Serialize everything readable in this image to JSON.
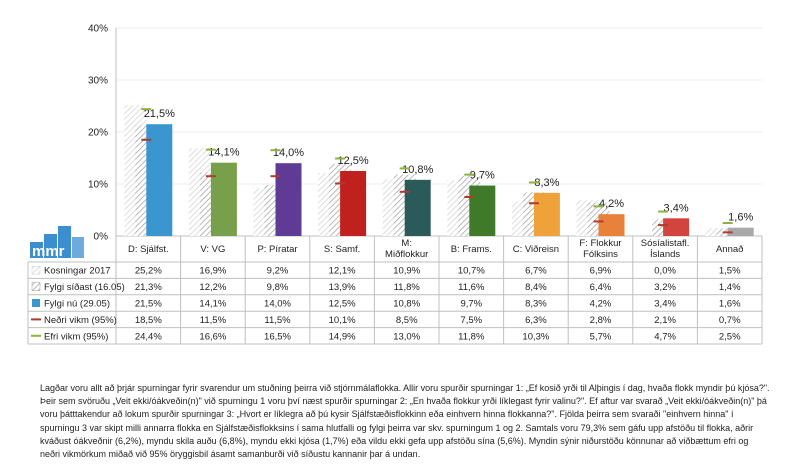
{
  "chart_data": {
    "type": "bar",
    "categories": [
      [
        "D: Sjálfst."
      ],
      [
        "V: VG"
      ],
      [
        "P: Píratar"
      ],
      [
        "S: Samf."
      ],
      [
        "M:",
        "Miðflokkur"
      ],
      [
        "B: Frams."
      ],
      [
        "C: Viðreisn"
      ],
      [
        "F: Flokkur",
        "Fólksins"
      ],
      [
        "Sósíalistafl.",
        "Íslands"
      ],
      [
        "Annað"
      ]
    ],
    "ylim": [
      0,
      40
    ],
    "yticks": [
      "0%",
      "10%",
      "20%",
      "30%",
      "40%"
    ],
    "ytick_values": [
      0,
      10,
      20,
      30,
      40
    ],
    "series": [
      {
        "name": "Kosningar 2017",
        "kind": "hatch-light",
        "values": [
          25.2,
          16.9,
          9.2,
          12.1,
          10.9,
          10.7,
          6.7,
          6.9,
          0.0,
          1.5
        ],
        "labels": [
          "25,2%",
          "16,9%",
          "9,2%",
          "12,1%",
          "10,9%",
          "10,7%",
          "6,7%",
          "6,9%",
          "0,0%",
          "1,5%"
        ]
      },
      {
        "name": "Fylgi síðast (16.05)",
        "kind": "hatch-dark",
        "values": [
          21.3,
          12.2,
          9.8,
          13.9,
          11.8,
          11.6,
          8.4,
          6.4,
          3.2,
          1.4
        ],
        "labels": [
          "21,3%",
          "12,2%",
          "9,8%",
          "13,9%",
          "11,8%",
          "11,6%",
          "8,4%",
          "6,4%",
          "3,2%",
          "1,4%"
        ]
      },
      {
        "name": "Fylgi nú (29.05)",
        "kind": "bar",
        "values": [
          21.5,
          14.1,
          14.0,
          12.5,
          10.8,
          9.7,
          8.3,
          4.2,
          3.4,
          1.6
        ],
        "labels": [
          "21,5%",
          "14,1%",
          "14,0%",
          "12,5%",
          "10,8%",
          "9,7%",
          "8,3%",
          "4,2%",
          "3,4%",
          "1,6%"
        ]
      },
      {
        "name": "Neðri vikm (95%)",
        "kind": "marker-low",
        "values": [
          18.5,
          11.5,
          11.5,
          10.1,
          8.5,
          7.5,
          6.3,
          2.8,
          2.1,
          0.7
        ],
        "labels": [
          "18,5%",
          "11,5%",
          "11,5%",
          "10,1%",
          "8,5%",
          "7,5%",
          "6,3%",
          "2,8%",
          "2,1%",
          "0,7%"
        ]
      },
      {
        "name": "Efri vikm (95%)",
        "kind": "marker-high",
        "values": [
          24.4,
          16.6,
          16.5,
          14.9,
          13.0,
          11.8,
          10.3,
          5.7,
          4.7,
          2.5
        ],
        "labels": [
          "24,4%",
          "16,6%",
          "16,5%",
          "14,9%",
          "13,0%",
          "11,8%",
          "10,3%",
          "5,7%",
          "4,7%",
          "2,5%"
        ]
      }
    ],
    "bar_colors": [
      "#3b96cf",
      "#78a04a",
      "#5e3b94",
      "#c0211f",
      "#2b5a5a",
      "#3f7a2a",
      "#f0a23a",
      "#e8823a",
      "#d2453e",
      "#a9a9a9"
    ],
    "marker_colors": {
      "low": "#b03a2e",
      "high": "#8fb23e"
    },
    "legend_placement": "table-left"
  },
  "logo_text": "mmr",
  "note": "Lagðar voru allt að þrjár spurningar fyrir svarendur um stuðning þeirra við stjórnmálaflokka. Allir voru spurðir spurningar 1: „Ef kosið yrði til Alþingis í dag, hvaða flokk myndir þú kjósa?\". Þeir sem svöruðu „Veit ekki/óákveðin(n)\" við spurningu 1 voru því næst spurðir spurningar 2: „En hvaða flokkur yrði líklegast fyrir valinu?\". Ef aftur var svarað „Veit ekki/óákveðin(n)\" þá voru þátttakendur að lokum spurðir spurningar 3: „Hvort er líklegra að þú kysir Sjálfstæðisflokkinn eða einhvern hinna flokkanna?\". Fjölda þeirra sem svaraði \"einhvern hinna\" í spurningu 3 var skipt milli annarra flokka en Sjálfstæðisflokksins í sama hlutfalli og fylgi þeirra var skv. spurningum 1 og 2. Samtals voru 79,3% sem gáfu upp afstöðu til flokka, aðrir kváðust óákveðnir (6,2%), myndu skila auðu (6,8%), myndu ekki kjósa (1,7%) eða vildu ekki gefa upp afstöðu sína (5,6%). Myndin sýnir niðurstöðu könnunar að viðbættum efri og neðri vikmörkum miðað við 95% öryggisbil ásamt samanburði við síðustu kannanir þar á undan."
}
